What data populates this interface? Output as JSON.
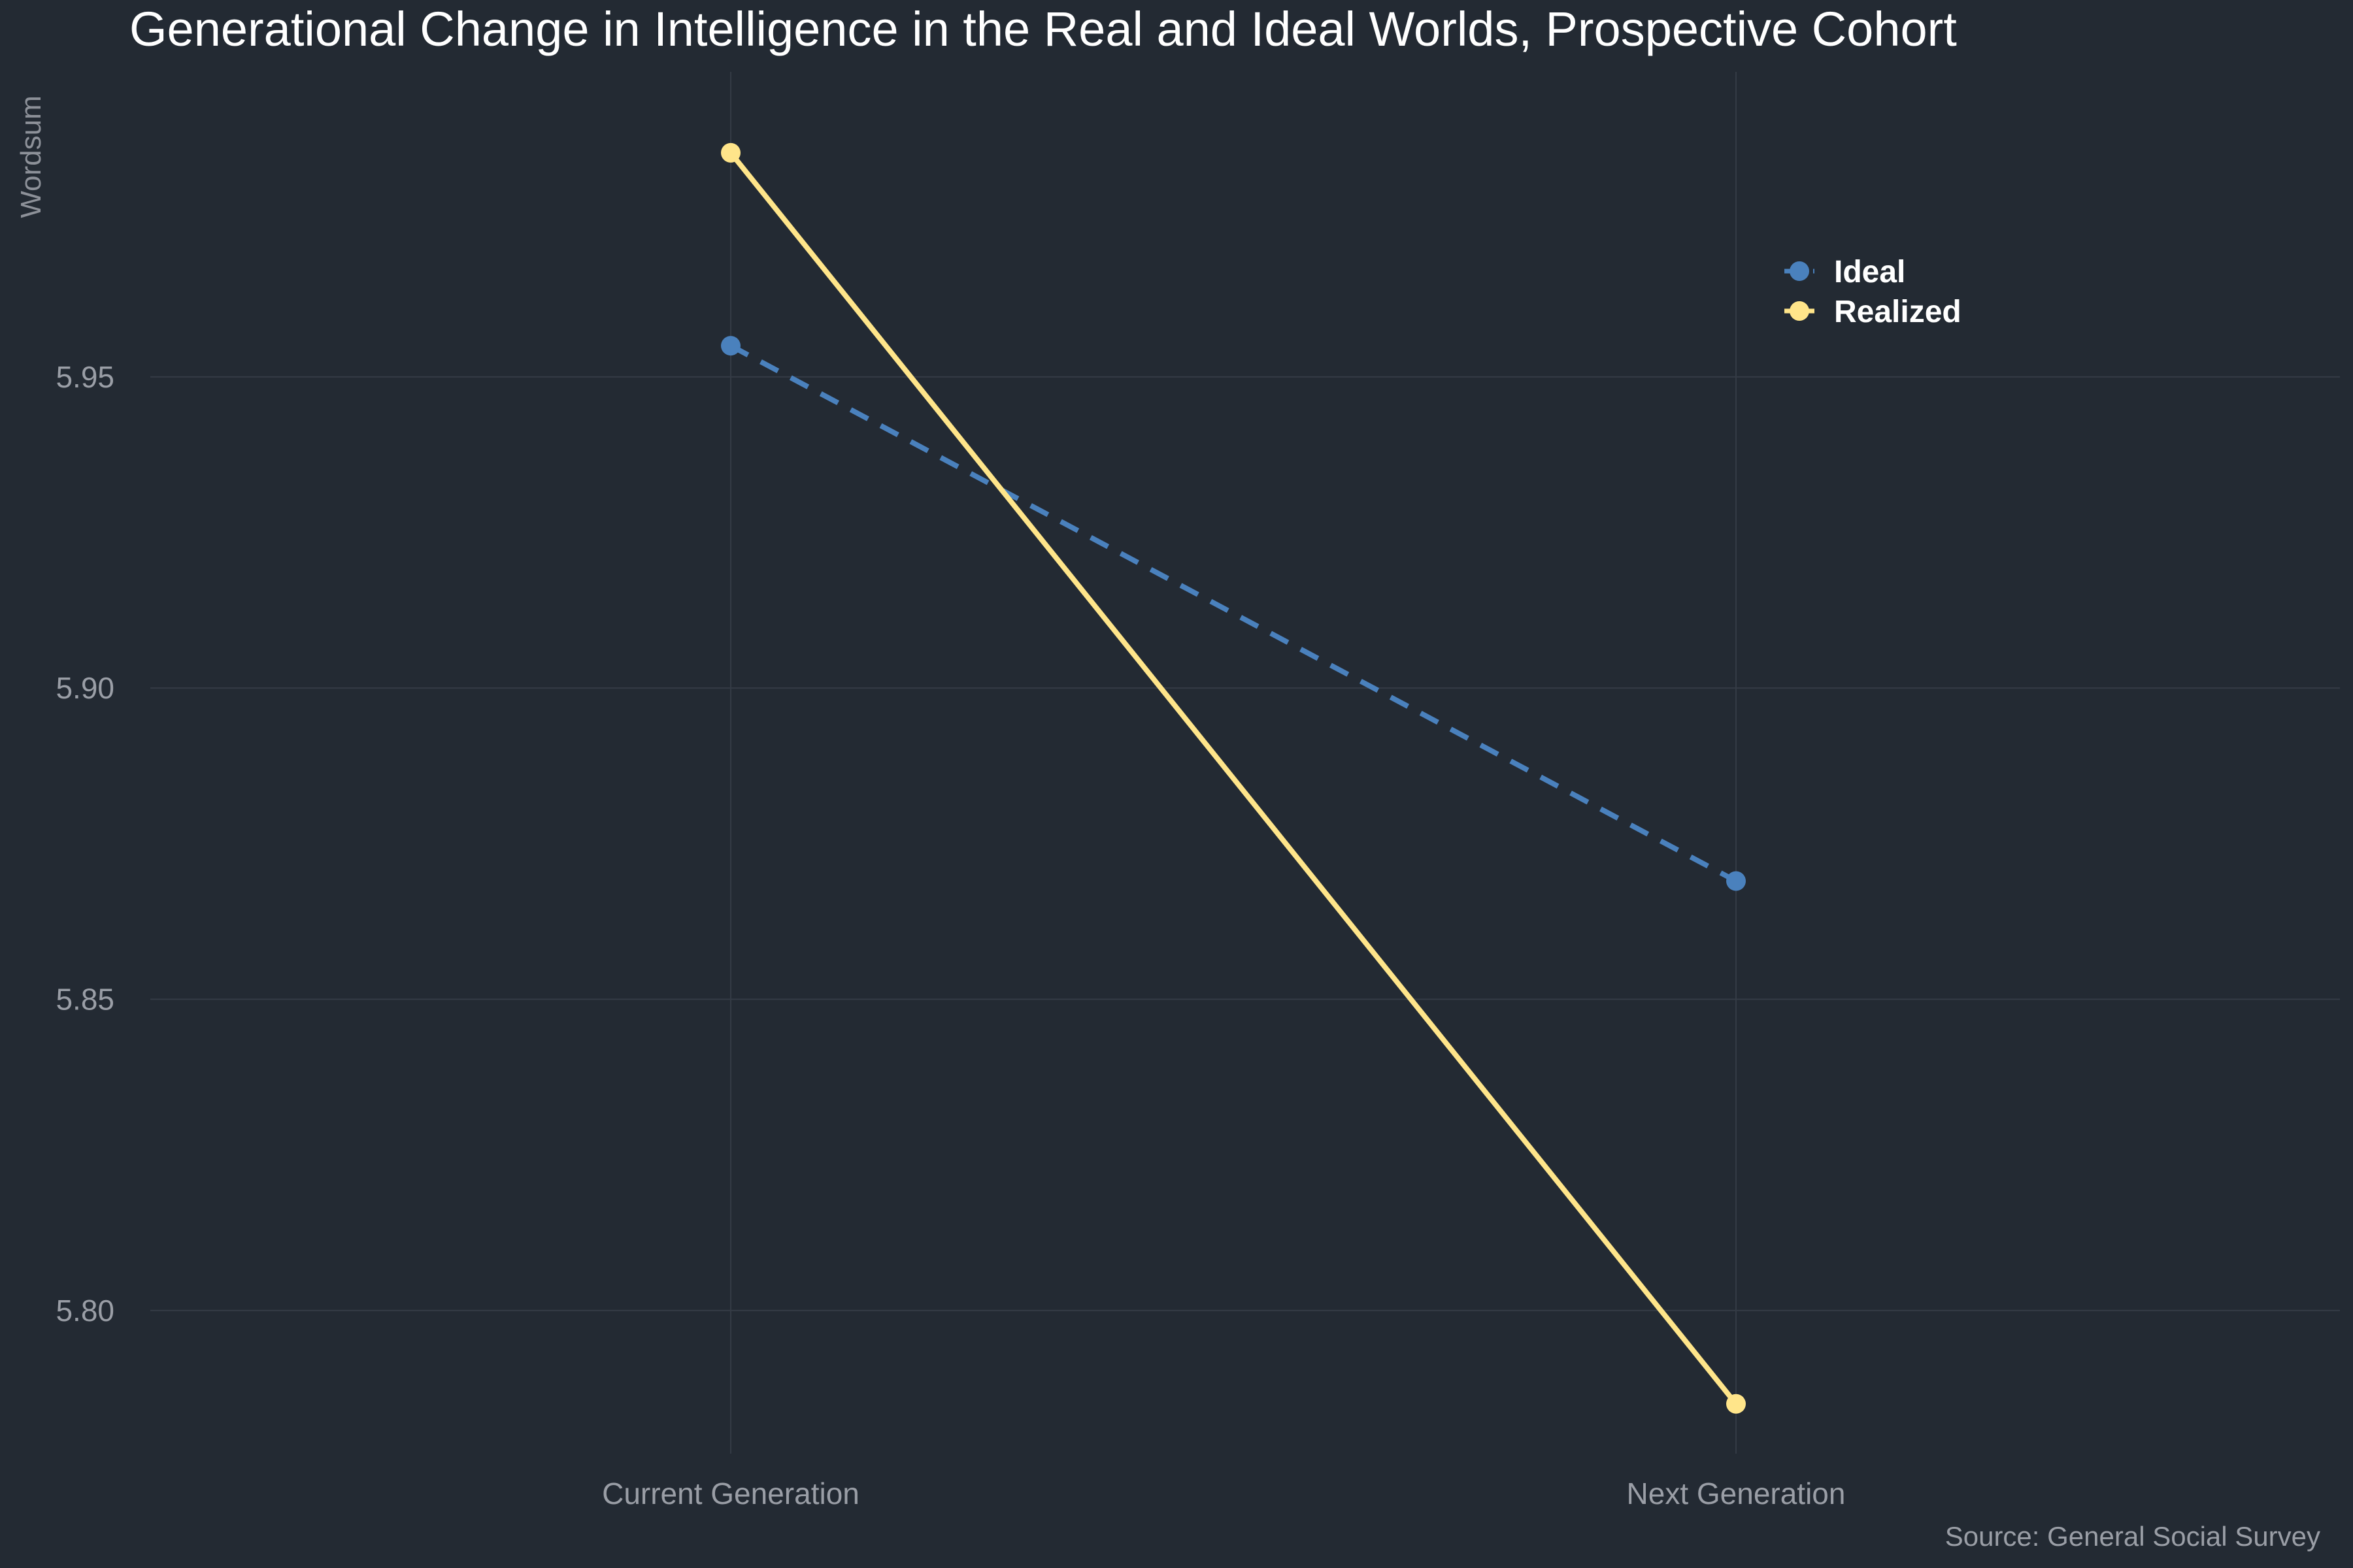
{
  "chart_data": {
    "type": "line",
    "title": "Generational Change in Intelligence in the Real and Ideal Worlds, Prospective Cohort",
    "ylabel": "Wordsum",
    "xlabel": "",
    "categories": [
      "Current Generation",
      "Next Generation"
    ],
    "ylim": [
      5.777,
      5.999
    ],
    "yticks": [
      5.8,
      5.85,
      5.9,
      5.95
    ],
    "ytick_labels": [
      "5.80",
      "5.85",
      "5.90",
      "5.95"
    ],
    "grid": true,
    "legend_position": "top-right",
    "series": [
      {
        "name": "Ideal",
        "values": [
          5.955,
          5.869
        ],
        "color": "#4a81bd",
        "line_style": "dashed"
      },
      {
        "name": "Realized",
        "values": [
          5.986,
          5.785
        ],
        "color": "#ffe58a",
        "line_style": "solid"
      }
    ],
    "caption": "Source: General Social Survey"
  },
  "colors": {
    "background": "#232a33",
    "grid": "#343b45",
    "text": "#ffffff",
    "muted_text": "#9a9ea6"
  }
}
